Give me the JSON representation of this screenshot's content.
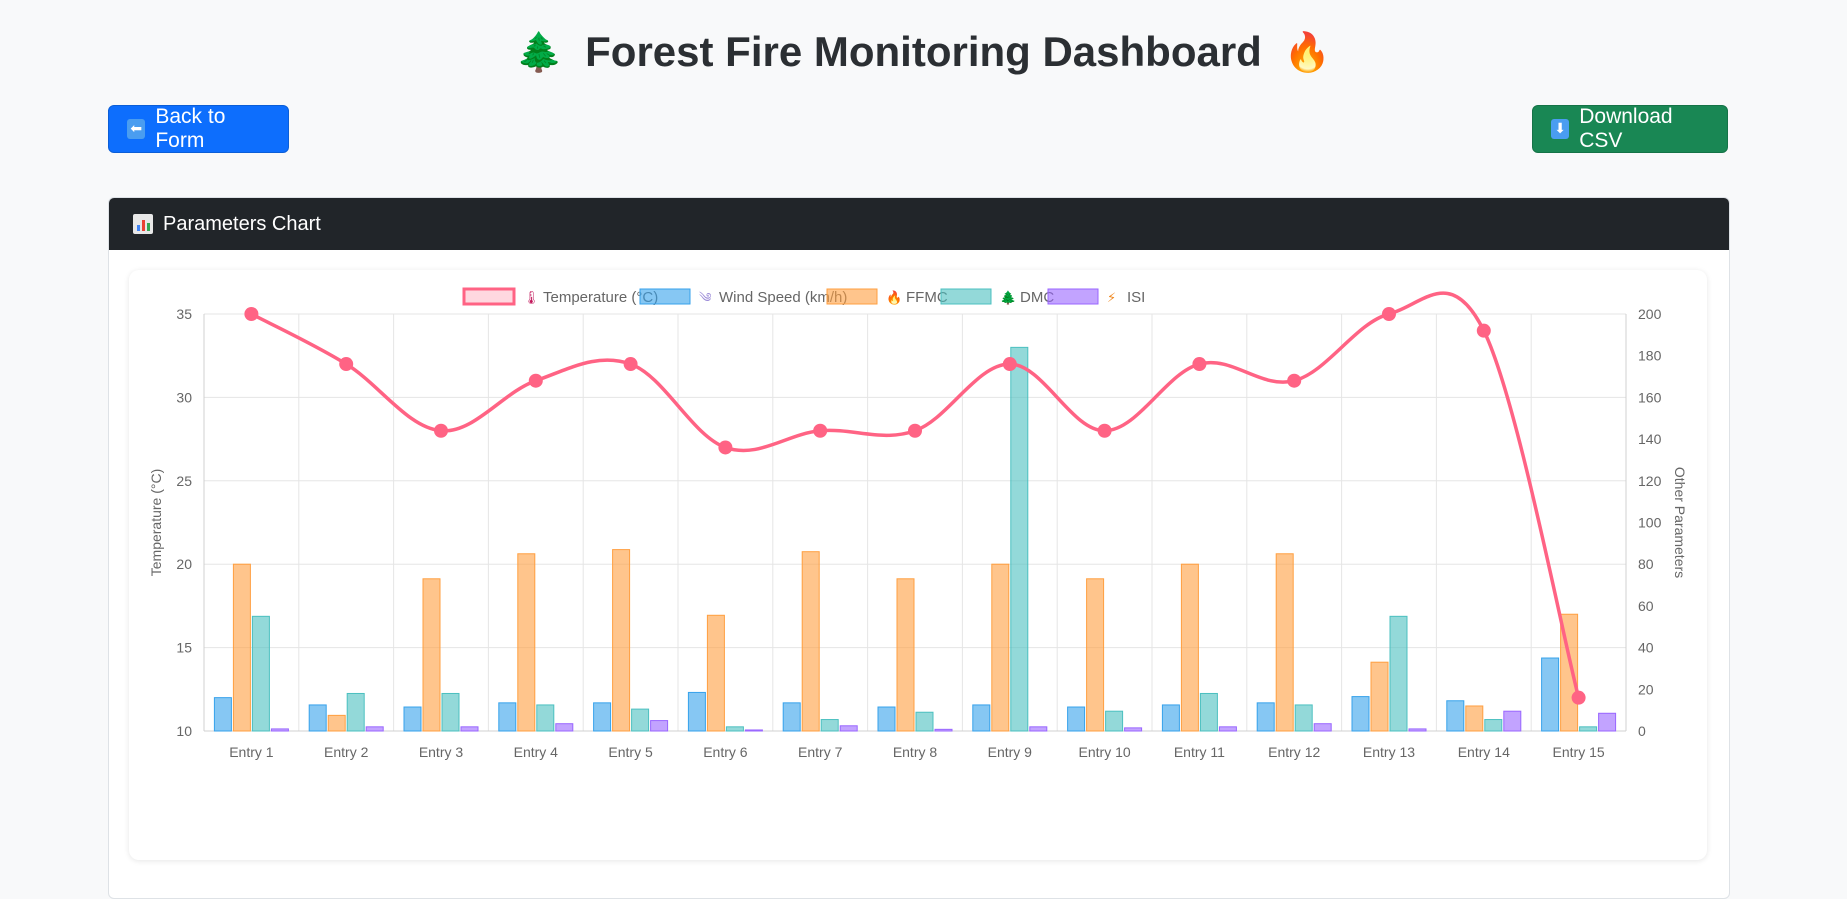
{
  "page": {
    "title": "Forest Fire Monitoring Dashboard",
    "title_icon_left": "tree-icon",
    "title_icon_right": "fire-icon"
  },
  "buttons": {
    "back_label": "Back to Form",
    "back_icon": "left-arrow-icon",
    "download_label": "Download CSV",
    "download_icon": "down-arrow-icon"
  },
  "card": {
    "header_label": "Parameters Chart",
    "header_icon": "bar-chart-icon"
  },
  "chart_data": {
    "type": "bar",
    "categories": [
      "Entry 1",
      "Entry 2",
      "Entry 3",
      "Entry 4",
      "Entry 5",
      "Entry 6",
      "Entry 7",
      "Entry 8",
      "Entry 9",
      "Entry 10",
      "Entry 11",
      "Entry 12",
      "Entry 13",
      "Entry 14",
      "Entry 15"
    ],
    "ylabel": "Temperature (°C)",
    "y2label": "Other Parameters",
    "ylim": [
      10,
      35
    ],
    "y2lim": [
      0,
      200
    ],
    "yticks": [
      10,
      15,
      20,
      25,
      30,
      35
    ],
    "y2ticks": [
      0,
      20,
      40,
      60,
      80,
      100,
      120,
      140,
      160,
      180,
      200
    ],
    "grid": true,
    "legend_position": "top",
    "line_series": {
      "name": "Temperature (°C)",
      "color": "#ff6384",
      "icon": "thermometer-icon",
      "values": [
        35,
        32,
        28,
        31,
        32,
        27,
        28,
        28,
        32,
        28,
        32,
        31,
        35,
        34,
        12
      ]
    },
    "series": [
      {
        "name": "Wind Speed (km/h)",
        "icon": "wind-icon",
        "color": "#36a2eb",
        "values": [
          16,
          12.5,
          11.5,
          13.5,
          13.5,
          18.5,
          13.5,
          11.5,
          12.5,
          11.5,
          12.5,
          13.5,
          16.5,
          14.5,
          35
        ]
      },
      {
        "name": "FFMC",
        "icon": "fire-icon",
        "color": "#ff9f40",
        "values": [
          80,
          7.5,
          73,
          85,
          87,
          55.5,
          86,
          73,
          80,
          73,
          80,
          85,
          33,
          12,
          56
        ]
      },
      {
        "name": "DMC",
        "icon": "tree-icon",
        "color": "#4bc0c0",
        "values": [
          55,
          18,
          18,
          12.5,
          10.5,
          2,
          5.5,
          9,
          184,
          9.5,
          18,
          12.5,
          55,
          5.5,
          2
        ]
      },
      {
        "name": "ISI",
        "icon": "lightning-icon",
        "color": "#9966ff",
        "values": [
          1,
          2,
          2,
          3.5,
          5,
          0.5,
          2.5,
          0.8,
          2,
          1.5,
          2,
          3.5,
          1,
          9.5,
          8.5
        ]
      }
    ]
  }
}
